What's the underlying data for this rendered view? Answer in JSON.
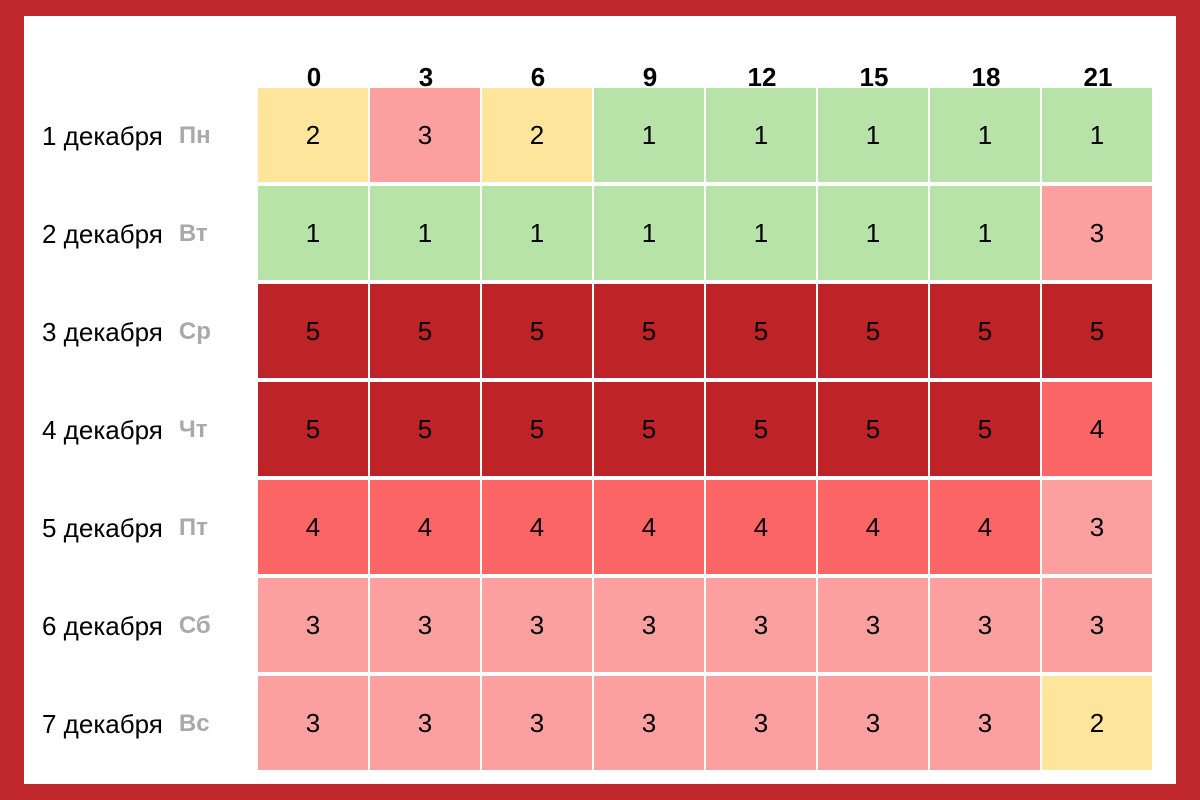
{
  "chart_data": {
    "type": "heatmap",
    "x": [
      "0",
      "3",
      "6",
      "9",
      "12",
      "15",
      "18",
      "21"
    ],
    "y": [
      {
        "date": "1 декабря",
        "day": "Пн"
      },
      {
        "date": "2 декабря",
        "day": "Вт"
      },
      {
        "date": "3 декабря",
        "day": "Ср"
      },
      {
        "date": "4 декабря",
        "day": "Чт"
      },
      {
        "date": "5 декабря",
        "day": "Пт"
      },
      {
        "date": "6 декабря",
        "day": "Сб"
      },
      {
        "date": "7 декабря",
        "day": "Вс"
      }
    ],
    "values": [
      [
        2,
        3,
        2,
        1,
        1,
        1,
        1,
        1
      ],
      [
        1,
        1,
        1,
        1,
        1,
        1,
        1,
        3
      ],
      [
        5,
        5,
        5,
        5,
        5,
        5,
        5,
        5
      ],
      [
        5,
        5,
        5,
        5,
        5,
        5,
        5,
        4
      ],
      [
        4,
        4,
        4,
        4,
        4,
        4,
        4,
        3
      ],
      [
        3,
        3,
        3,
        3,
        3,
        3,
        3,
        3
      ],
      [
        3,
        3,
        3,
        3,
        3,
        3,
        3,
        2
      ]
    ],
    "colors": {
      "1": "#b7e3a8",
      "2": "#fde69c",
      "3": "#fb9f9f",
      "4": "#fb6566",
      "5": "#bd2327"
    },
    "frame_color": "#c0272d"
  }
}
